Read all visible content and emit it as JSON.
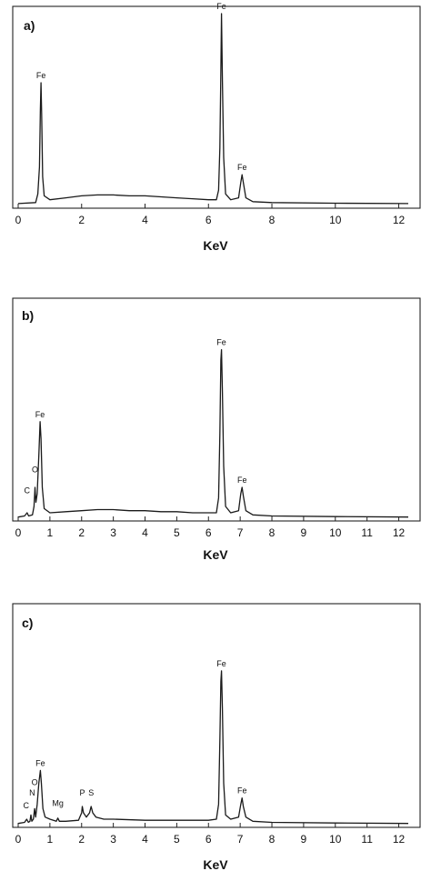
{
  "chart_data": [
    {
      "type": "line",
      "panel_label": "a)",
      "xlabel": "KeV",
      "ylabel": "",
      "xlim": [
        0,
        12.3
      ],
      "xticks": [
        0,
        2,
        4,
        6,
        8,
        10,
        12
      ],
      "baseline": 0.01,
      "series": [
        {
          "points": [
            [
              0.0,
              0.01
            ],
            [
              0.55,
              0.015
            ],
            [
              0.62,
              0.06
            ],
            [
              0.67,
              0.2
            ],
            [
              0.7,
              0.5
            ],
            [
              0.72,
              0.64
            ],
            [
              0.74,
              0.48
            ],
            [
              0.77,
              0.15
            ],
            [
              0.82,
              0.05
            ],
            [
              1.0,
              0.03
            ],
            [
              1.5,
              0.04
            ],
            [
              2.0,
              0.05
            ],
            [
              2.5,
              0.055
            ],
            [
              3.0,
              0.055
            ],
            [
              3.5,
              0.05
            ],
            [
              4.0,
              0.05
            ],
            [
              4.5,
              0.045
            ],
            [
              5.0,
              0.04
            ],
            [
              5.5,
              0.035
            ],
            [
              6.0,
              0.03
            ],
            [
              6.25,
              0.03
            ],
            [
              6.32,
              0.08
            ],
            [
              6.36,
              0.3
            ],
            [
              6.39,
              0.7
            ],
            [
              6.41,
              1.0
            ],
            [
              6.44,
              0.65
            ],
            [
              6.48,
              0.25
            ],
            [
              6.54,
              0.06
            ],
            [
              6.7,
              0.03
            ],
            [
              6.95,
              0.04
            ],
            [
              7.02,
              0.12
            ],
            [
              7.06,
              0.16
            ],
            [
              7.1,
              0.12
            ],
            [
              7.18,
              0.04
            ],
            [
              7.4,
              0.02
            ],
            [
              8.0,
              0.015
            ],
            [
              10.0,
              0.012
            ],
            [
              12.3,
              0.01
            ]
          ]
        }
      ],
      "annotations": [
        {
          "text": "Fe",
          "x": 0.72,
          "y": 0.64
        },
        {
          "text": "Fe",
          "x": 6.41,
          "y": 1.0
        },
        {
          "text": "Fe",
          "x": 7.06,
          "y": 0.16
        }
      ]
    },
    {
      "type": "line",
      "panel_label": "b)",
      "xlabel": "KeV",
      "ylabel": "",
      "xlim": [
        0,
        12.3
      ],
      "xticks": [
        0,
        1,
        2,
        3,
        4,
        5,
        6,
        7,
        8,
        9,
        10,
        11,
        12
      ],
      "baseline": 0.01,
      "series": [
        {
          "points": [
            [
              0.0,
              0.01
            ],
            [
              0.2,
              0.015
            ],
            [
              0.28,
              0.03
            ],
            [
              0.33,
              0.015
            ],
            [
              0.45,
              0.02
            ],
            [
              0.5,
              0.06
            ],
            [
              0.53,
              0.15
            ],
            [
              0.56,
              0.08
            ],
            [
              0.6,
              0.12
            ],
            [
              0.65,
              0.3
            ],
            [
              0.69,
              0.46
            ],
            [
              0.72,
              0.38
            ],
            [
              0.76,
              0.15
            ],
            [
              0.82,
              0.05
            ],
            [
              1.0,
              0.03
            ],
            [
              1.5,
              0.035
            ],
            [
              2.0,
              0.04
            ],
            [
              2.5,
              0.045
            ],
            [
              3.0,
              0.045
            ],
            [
              3.5,
              0.04
            ],
            [
              4.0,
              0.04
            ],
            [
              4.5,
              0.035
            ],
            [
              5.0,
              0.035
            ],
            [
              5.5,
              0.03
            ],
            [
              6.0,
              0.03
            ],
            [
              6.25,
              0.03
            ],
            [
              6.32,
              0.1
            ],
            [
              6.36,
              0.4
            ],
            [
              6.39,
              0.75
            ],
            [
              6.41,
              0.8
            ],
            [
              6.44,
              0.6
            ],
            [
              6.48,
              0.25
            ],
            [
              6.54,
              0.06
            ],
            [
              6.7,
              0.03
            ],
            [
              6.95,
              0.04
            ],
            [
              7.02,
              0.12
            ],
            [
              7.06,
              0.15
            ],
            [
              7.1,
              0.11
            ],
            [
              7.18,
              0.04
            ],
            [
              7.4,
              0.02
            ],
            [
              8.0,
              0.015
            ],
            [
              10.0,
              0.012
            ],
            [
              12.3,
              0.01
            ]
          ]
        }
      ],
      "annotations": [
        {
          "text": "C",
          "x": 0.28,
          "y": 0.1
        },
        {
          "text": "O",
          "x": 0.53,
          "y": 0.2
        },
        {
          "text": "Fe",
          "x": 0.69,
          "y": 0.46
        },
        {
          "text": "Fe",
          "x": 6.41,
          "y": 0.8
        },
        {
          "text": "Fe",
          "x": 7.06,
          "y": 0.15
        }
      ]
    },
    {
      "type": "line",
      "panel_label": "c)",
      "xlabel": "KeV",
      "ylabel": "",
      "xlim": [
        0,
        12.3
      ],
      "xticks": [
        0,
        1,
        2,
        3,
        4,
        5,
        6,
        7,
        8,
        9,
        10,
        11,
        12
      ],
      "baseline": 0.01,
      "series": [
        {
          "points": [
            [
              0.0,
              0.01
            ],
            [
              0.2,
              0.015
            ],
            [
              0.27,
              0.03
            ],
            [
              0.32,
              0.015
            ],
            [
              0.37,
              0.02
            ],
            [
              0.4,
              0.05
            ],
            [
              0.43,
              0.02
            ],
            [
              0.48,
              0.03
            ],
            [
              0.52,
              0.08
            ],
            [
              0.55,
              0.04
            ],
            [
              0.6,
              0.1
            ],
            [
              0.65,
              0.2
            ],
            [
              0.7,
              0.26
            ],
            [
              0.73,
              0.2
            ],
            [
              0.78,
              0.08
            ],
            [
              0.85,
              0.04
            ],
            [
              1.0,
              0.03
            ],
            [
              1.2,
              0.02
            ],
            [
              1.25,
              0.035
            ],
            [
              1.3,
              0.02
            ],
            [
              1.5,
              0.02
            ],
            [
              1.9,
              0.025
            ],
            [
              2.0,
              0.06
            ],
            [
              2.02,
              0.09
            ],
            [
              2.06,
              0.06
            ],
            [
              2.15,
              0.04
            ],
            [
              2.25,
              0.06
            ],
            [
              2.3,
              0.09
            ],
            [
              2.35,
              0.06
            ],
            [
              2.45,
              0.04
            ],
            [
              2.7,
              0.03
            ],
            [
              3.0,
              0.03
            ],
            [
              4.0,
              0.025
            ],
            [
              5.0,
              0.025
            ],
            [
              6.0,
              0.025
            ],
            [
              6.25,
              0.03
            ],
            [
              6.32,
              0.1
            ],
            [
              6.36,
              0.4
            ],
            [
              6.39,
              0.68
            ],
            [
              6.41,
              0.73
            ],
            [
              6.44,
              0.55
            ],
            [
              6.48,
              0.2
            ],
            [
              6.54,
              0.05
            ],
            [
              6.7,
              0.03
            ],
            [
              6.95,
              0.04
            ],
            [
              7.02,
              0.1
            ],
            [
              7.06,
              0.13
            ],
            [
              7.1,
              0.09
            ],
            [
              7.18,
              0.04
            ],
            [
              7.4,
              0.02
            ],
            [
              8.0,
              0.015
            ],
            [
              10.0,
              0.012
            ],
            [
              12.3,
              0.01
            ]
          ]
        }
      ],
      "annotations": [
        {
          "text": "C",
          "x": 0.25,
          "y": 0.06
        },
        {
          "text": "N",
          "x": 0.44,
          "y": 0.12
        },
        {
          "text": "O",
          "x": 0.52,
          "y": 0.17
        },
        {
          "text": "Fe",
          "x": 0.7,
          "y": 0.26
        },
        {
          "text": "Mg",
          "x": 1.25,
          "y": 0.07
        },
        {
          "text": "P",
          "x": 2.02,
          "y": 0.12
        },
        {
          "text": "S",
          "x": 2.3,
          "y": 0.12
        },
        {
          "text": "Fe",
          "x": 6.41,
          "y": 0.73
        },
        {
          "text": "Fe",
          "x": 7.06,
          "y": 0.13
        }
      ]
    }
  ]
}
